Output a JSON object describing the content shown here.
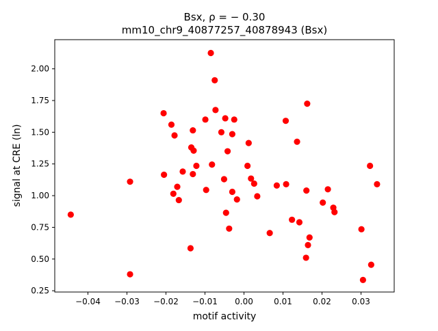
{
  "chart_data": {
    "type": "scatter",
    "title_line1": "Bsx, ρ = − 0.30",
    "title_line2": "mm10_chr9_40877257_40878943 (Bsx)",
    "xlabel": "motif activity",
    "ylabel": "signal at CRE (ln)",
    "xlim": [
      -0.0485,
      0.0385
    ],
    "ylim": [
      0.24,
      2.23
    ],
    "xticks": [
      -0.04,
      -0.03,
      -0.02,
      -0.01,
      0.0,
      0.01,
      0.02,
      0.03
    ],
    "xtick_labels": [
      "−0.04",
      "−0.03",
      "−0.02",
      "−0.01",
      "0.00",
      "0.01",
      "0.02",
      "0.03"
    ],
    "yticks": [
      0.25,
      0.5,
      0.75,
      1.0,
      1.25,
      1.5,
      1.75,
      2.0
    ],
    "ytick_labels": [
      "0.25",
      "0.50",
      "0.75",
      "1.00",
      "1.25",
      "1.50",
      "1.75",
      "2.00"
    ],
    "grid": false,
    "marker_color": "#ff0000",
    "points": [
      {
        "x": -0.0444,
        "y": 0.85
      },
      {
        "x": -0.0292,
        "y": 1.11
      },
      {
        "x": -0.0292,
        "y": 0.38
      },
      {
        "x": -0.0206,
        "y": 1.65
      },
      {
        "x": -0.0205,
        "y": 1.165
      },
      {
        "x": -0.0186,
        "y": 1.56
      },
      {
        "x": -0.0181,
        "y": 1.015
      },
      {
        "x": -0.0178,
        "y": 1.475
      },
      {
        "x": -0.0171,
        "y": 1.07
      },
      {
        "x": -0.0167,
        "y": 0.965
      },
      {
        "x": -0.0157,
        "y": 1.19
      },
      {
        "x": -0.0137,
        "y": 0.585
      },
      {
        "x": -0.0135,
        "y": 1.38
      },
      {
        "x": -0.0131,
        "y": 1.515
      },
      {
        "x": -0.0131,
        "y": 1.17
      },
      {
        "x": -0.0129,
        "y": 1.355
      },
      {
        "x": -0.0122,
        "y": 1.235
      },
      {
        "x": -0.0099,
        "y": 1.6
      },
      {
        "x": -0.0097,
        "y": 1.045
      },
      {
        "x": -0.0085,
        "y": 2.125
      },
      {
        "x": -0.0082,
        "y": 1.245
      },
      {
        "x": -0.0075,
        "y": 1.91
      },
      {
        "x": -0.0073,
        "y": 1.675
      },
      {
        "x": -0.0058,
        "y": 1.5
      },
      {
        "x": -0.0051,
        "y": 1.13
      },
      {
        "x": -0.0048,
        "y": 1.61
      },
      {
        "x": -0.0046,
        "y": 0.865
      },
      {
        "x": -0.0042,
        "y": 1.35
      },
      {
        "x": -0.0038,
        "y": 0.74
      },
      {
        "x": -0.003,
        "y": 1.485
      },
      {
        "x": -0.003,
        "y": 1.03
      },
      {
        "x": -0.0025,
        "y": 1.6
      },
      {
        "x": -0.0018,
        "y": 0.97
      },
      {
        "x": 0.0009,
        "y": 1.235
      },
      {
        "x": 0.0012,
        "y": 1.415
      },
      {
        "x": 0.0018,
        "y": 1.135
      },
      {
        "x": 0.0026,
        "y": 1.095
      },
      {
        "x": 0.0034,
        "y": 0.995
      },
      {
        "x": 0.0066,
        "y": 0.705
      },
      {
        "x": 0.0084,
        "y": 1.08
      },
      {
        "x": 0.0107,
        "y": 1.59
      },
      {
        "x": 0.0108,
        "y": 1.09
      },
      {
        "x": 0.0123,
        "y": 0.81
      },
      {
        "x": 0.0136,
        "y": 1.425
      },
      {
        "x": 0.0142,
        "y": 0.79
      },
      {
        "x": 0.016,
        "y": 1.04
      },
      {
        "x": 0.0162,
        "y": 1.725
      },
      {
        "x": 0.0164,
        "y": 0.61
      },
      {
        "x": 0.0168,
        "y": 0.67
      },
      {
        "x": 0.0159,
        "y": 0.51
      },
      {
        "x": 0.0202,
        "y": 0.945
      },
      {
        "x": 0.0215,
        "y": 1.05
      },
      {
        "x": 0.0229,
        "y": 0.905
      },
      {
        "x": 0.0232,
        "y": 0.87
      },
      {
        "x": 0.0301,
        "y": 0.735
      },
      {
        "x": 0.0305,
        "y": 0.335
      },
      {
        "x": 0.0323,
        "y": 1.235
      },
      {
        "x": 0.0326,
        "y": 0.455
      },
      {
        "x": 0.0341,
        "y": 1.09
      }
    ]
  }
}
